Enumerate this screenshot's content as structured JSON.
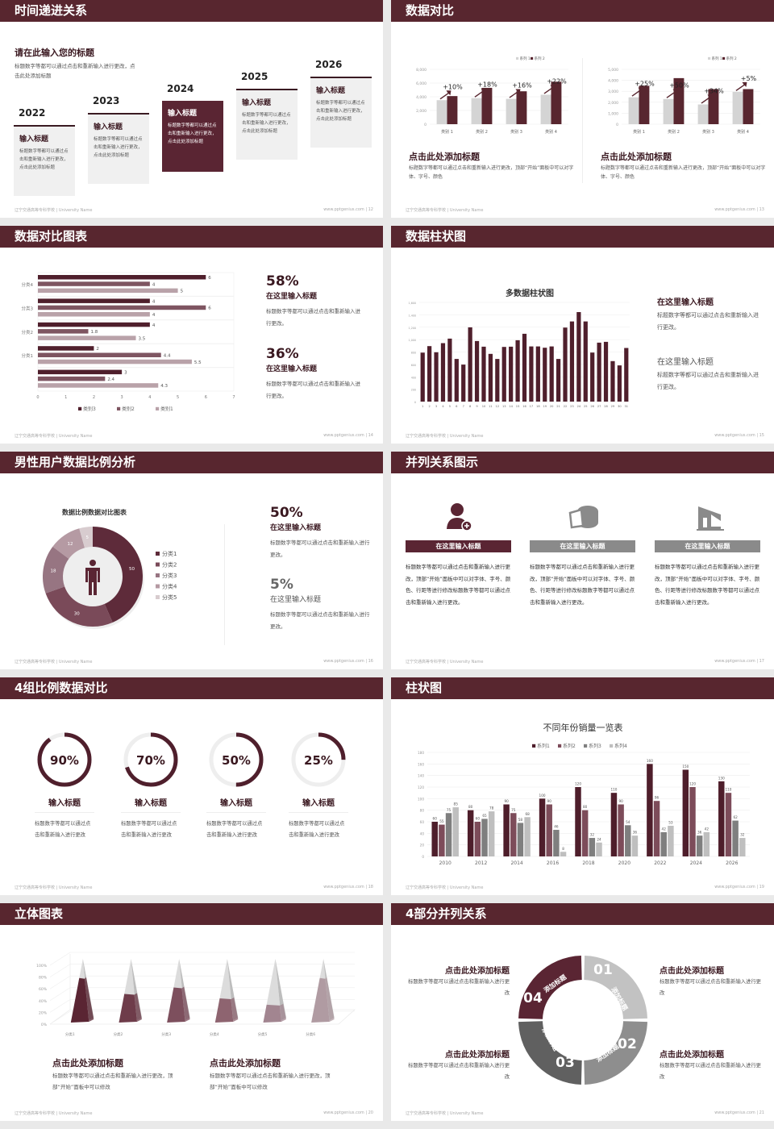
{
  "footer": {
    "school": "辽宁交通高等专科学校 | University Name",
    "site": "www.pptgenius.com"
  },
  "colors": {
    "header": "#58262f",
    "dark": "#4f1f2c",
    "mid": "#7a4b58",
    "light": "#b59aa2",
    "gray": "#d4d4d4"
  },
  "s12": {
    "title": "时间递进关系",
    "page": "12",
    "heading": "请在此输入您的标题",
    "desc": "标题数字等都可以通过点击和重新输入进行更改，点击此处添加标题",
    "items": [
      {
        "year": "2022",
        "title": "输入标题",
        "text": "标题数字等都可以通过点击和重新输入进行更改，点击此处添加标题"
      },
      {
        "year": "2023",
        "title": "输入标题",
        "text": "标题数字等都可以通过点击和重新输入进行更改，点击此处添加标题"
      },
      {
        "year": "2024",
        "title": "输入标题",
        "text": "标题数字等都可以通过点击和重新输入进行更改，点击此处添加标题"
      },
      {
        "year": "2025",
        "title": "输入标题",
        "text": "标题数字等都可以通过点击和重新输入进行更改，点击此处添加标题"
      },
      {
        "year": "2026",
        "title": "输入标题",
        "text": "标题数字等都可以通过点击和重新输入进行更改，点击此处添加标题"
      }
    ]
  },
  "s13": {
    "title": "数据对比",
    "page": "13",
    "panels": [
      {
        "heading": "点击此处添加标题",
        "desc": "标题数字等都可以通过点击和重新输入进行更改，顶部“开始”面板中可以对字体、字号、颜色"
      },
      {
        "heading": "点击此处添加标题",
        "desc": "标题数字等都可以通过点击和重新输入进行更改，顶部“开始”面板中可以对字体、字号、颜色"
      }
    ]
  },
  "s14": {
    "title": "数据对比图表",
    "page": "14",
    "stats": [
      {
        "value": "58%",
        "title": "在这里输入标题",
        "desc": "标题数字等都可以通过点击和重新输入进行更改。"
      },
      {
        "value": "36%",
        "title": "在这里输入标题",
        "desc": "标题数字等都可以通过点击和重新输入进行更改。"
      }
    ]
  },
  "s15": {
    "title": "数据柱状图",
    "page": "15",
    "notes": [
      {
        "title": "在这里输入标题",
        "desc": "标题数字等都可以通过点击和重新输入进行更改。"
      },
      {
        "title": "在这里输入标题",
        "desc": "标题数字等都可以通过点击和重新输入进行更改。"
      }
    ]
  },
  "s16": {
    "title": "男性用户数据比例分析",
    "page": "16",
    "stats": [
      {
        "value": "50%",
        "title": "在这里输入标题",
        "desc": "标题数字等都可以通过点击和重新输入进行更改。"
      },
      {
        "value": "5%",
        "title": "在这里输入标题",
        "desc": "标题数字等都可以通过点击和重新输入进行更改。"
      }
    ]
  },
  "s17": {
    "title": "并列关系图示",
    "page": "17",
    "items": [
      {
        "icon": "female-user-add-icon",
        "title": "在这里输入标题",
        "color": "#5a2533",
        "text": "标题数字等都可以通过点击和重新输入进行更改，顶部“开始”面板中可以对字体、字号、颜色、行距等进行修改标题数字等都可以通过点击和重新输入进行更改。"
      },
      {
        "icon": "cheese-pie-icon",
        "title": "在这里输入标题",
        "color": "#8a8a8a",
        "text": "标题数字等都可以通过点击和重新输入进行更改，顶部“开始”面板中可以对字体、字号、颜色、行距等进行修改标题数字等都可以通过点击和重新输入进行更改。"
      },
      {
        "icon": "building-icon",
        "title": "在这里输入标题",
        "color": "#8a8a8a",
        "text": "标题数字等都可以通过点击和重新输入进行更改，顶部“开始”面板中可以对字体、字号、颜色、行距等进行修改标题数字等都可以通过点击和重新输入进行更改。"
      }
    ]
  },
  "s18": {
    "title": "4组比例数据对比",
    "page": "18",
    "items": [
      {
        "percent": 90,
        "label": "90%",
        "title": "输入标题",
        "text": "标题数字等都可以通过点击和重新输入进行更改"
      },
      {
        "percent": 70,
        "label": "70%",
        "title": "输入标题",
        "text": "标题数字等都可以通过点击和重新输入进行更改"
      },
      {
        "percent": 50,
        "label": "50%",
        "title": "输入标题",
        "text": "标题数字等都可以通过点击和重新输入进行更改"
      },
      {
        "percent": 25,
        "label": "25%",
        "title": "输入标题",
        "text": "标题数字等都可以通过点击和重新输入进行更改"
      }
    ]
  },
  "s19": {
    "title": "柱状图",
    "page": "19"
  },
  "s20": {
    "title": "立体图表",
    "page": "20",
    "panels": [
      {
        "heading": "点击此处添加标题",
        "desc": "标题数字等都可以通过点击和重新输入进行更改，顶部“开始”面板中可以修改"
      },
      {
        "heading": "点击此处添加标题",
        "desc": "标题数字等都可以通过点击和重新输入进行更改，顶部“开始”面板中可以修改"
      }
    ]
  },
  "s21": {
    "title": "4部分并列关系",
    "page": "21",
    "segments": [
      {
        "num": "01",
        "label": "添加标题",
        "color": "#c2c2c2"
      },
      {
        "num": "02",
        "label": "添加标题",
        "color": "#8e8e8e"
      },
      {
        "num": "03",
        "label": "添加标题",
        "color": "#606060"
      },
      {
        "num": "04",
        "label": "添加标题",
        "color": "#5a2533"
      }
    ],
    "notes": [
      {
        "heading": "点击此处添加标题",
        "desc": "标题数字等都可以通过点击和重新输入进行更改"
      },
      {
        "heading": "点击此处添加标题",
        "desc": "标题数字等都可以通过点击和重新输入进行更改"
      },
      {
        "heading": "点击此处添加标题",
        "desc": "标题数字等都可以通过点击和重新输入进行更改"
      },
      {
        "heading": "点击此处添加标题",
        "desc": "标题数字等都可以通过点击和重新输入进行更改"
      }
    ]
  },
  "chart_data": [
    {
      "type": "bar",
      "slide": "13",
      "categories": [
        "类别 1",
        "类别 2",
        "类别 3",
        "类别 4"
      ],
      "ylim": [
        0,
        8000
      ],
      "yticks": [
        "0",
        "2,000",
        "4,000",
        "6,000",
        "8,000"
      ],
      "series": [
        {
          "name": "系列 1",
          "color": "#d4d4d4",
          "values": [
            3500,
            3800,
            3700,
            4300
          ]
        },
        {
          "name": "系列 2",
          "color": "#58262f",
          "values": [
            4100,
            5300,
            4800,
            6200
          ]
        }
      ],
      "annotations": [
        "+10%",
        "+18%",
        "+16%",
        "+22%"
      ]
    },
    {
      "type": "bar",
      "slide": "13",
      "categories": [
        "类别 1",
        "类别 2",
        "类别 3",
        "类别 4"
      ],
      "ylim": [
        0,
        5000
      ],
      "yticks": [
        "0",
        "1,000",
        "2,000",
        "3,000",
        "4,000",
        "5,000"
      ],
      "series": [
        {
          "name": "系列 1",
          "color": "#d4d4d4",
          "values": [
            2450,
            2300,
            1800,
            2950
          ]
        },
        {
          "name": "系列 2",
          "color": "#58262f",
          "values": [
            3500,
            4200,
            3200,
            3200
          ]
        }
      ],
      "annotations": [
        "+25%",
        "+50%",
        "+34%",
        "+5%"
      ]
    },
    {
      "type": "bar",
      "orientation": "horizontal",
      "slide": "14",
      "categories": [
        "分类4",
        "分类3",
        "分类2",
        "分类1",
        ""
      ],
      "xlim": [
        0,
        7
      ],
      "xticks": [
        "0",
        "1",
        "2",
        "3",
        "4",
        "5",
        "6",
        "7"
      ],
      "series": [
        {
          "name": "类别3",
          "color": "#4f1f2c",
          "values": [
            6,
            4,
            4,
            2,
            3
          ]
        },
        {
          "name": "类别2",
          "color": "#7e5561",
          "values": [
            4,
            6,
            1.8,
            4.4,
            2.4
          ]
        },
        {
          "name": "类别1",
          "color": "#b9a2a9",
          "values": [
            5,
            4,
            3.5,
            5.5,
            4.3
          ]
        }
      ],
      "legend": "bottom"
    },
    {
      "type": "bar",
      "slide": "15",
      "title": "多数据柱状图",
      "ylim": [
        0,
        1600
      ],
      "yticks": [
        "0",
        "200",
        "400",
        "600",
        "800",
        "1,000",
        "1,200",
        "1,400",
        "1,600"
      ],
      "categories": [
        "1",
        "2",
        "3",
        "4",
        "5",
        "6",
        "7",
        "8",
        "9",
        "10",
        "11",
        "12",
        "13",
        "14",
        "15",
        "16",
        "17",
        "18",
        "19",
        "20",
        "21",
        "22",
        "23",
        "24",
        "25",
        "26",
        "27",
        "28",
        "29",
        "30",
        "31"
      ],
      "values": [
        790,
        895,
        796,
        943,
        1016,
        688,
        597,
        1198,
        977,
        886,
        770,
        688,
        882,
        886,
        990,
        1094,
        890,
        890,
        869,
        890,
        688,
        1194,
        1293,
        1444,
        1293,
        791,
        951,
        964,
        653,
        584,
        865
      ],
      "color": "#4f1f2c"
    },
    {
      "type": "pie",
      "donut": true,
      "slide": "16",
      "title": "数据比例数据对比图表",
      "categories": [
        "分类1",
        "分类2",
        "分类3",
        "分类4",
        "分类5"
      ],
      "values": [
        50,
        30,
        18,
        12,
        5
      ],
      "colors": [
        "#5e2b3a",
        "#7a4a59",
        "#977582",
        "#b59aa3",
        "#d8cccf"
      ],
      "legend": "right"
    },
    {
      "type": "bar",
      "slide": "19",
      "title": "不同年份销量一览表",
      "categories": [
        "2010",
        "2012",
        "2014",
        "2016",
        "2018",
        "2020",
        "2022",
        "2024",
        "2026"
      ],
      "ylim": [
        0,
        180
      ],
      "yticks": [
        "0",
        "20",
        "40",
        "60",
        "80",
        "100",
        "120",
        "140",
        "160",
        "180"
      ],
      "legend": "top",
      "series": [
        {
          "name": "系列1",
          "color": "#4e1e2b",
          "values": [
            60,
            80,
            90,
            100,
            120,
            110,
            160,
            150,
            130
          ]
        },
        {
          "name": "系列2",
          "color": "#7d4c5a",
          "values": [
            55,
            60,
            75,
            90,
            80,
            90,
            96,
            120,
            110
          ]
        },
        {
          "name": "系列3",
          "color": "#7f7f7f",
          "values": [
            75,
            65,
            58,
            46,
            32,
            54,
            42,
            36,
            62
          ]
        },
        {
          "name": "系列4",
          "color": "#bfbfbf",
          "values": [
            85,
            78,
            68,
            8,
            24,
            36,
            53,
            42,
            32
          ]
        }
      ]
    },
    {
      "type": "bar",
      "style": "3d-pyramid",
      "slide": "20",
      "categories": [
        "分类1",
        "分类2",
        "分类3",
        "分类4",
        "分类5",
        "分类6"
      ],
      "ylim": [
        0,
        100
      ],
      "yticks": [
        "0%",
        "20%",
        "40%",
        "60%",
        "80%",
        "100%"
      ],
      "values": [
        70,
        45,
        55,
        38,
        28,
        70
      ],
      "colors": [
        "#5a2533",
        "#6e3c4a",
        "#7d4f5d",
        "#8e6470",
        "#a28590",
        "#b09ba2"
      ]
    }
  ]
}
